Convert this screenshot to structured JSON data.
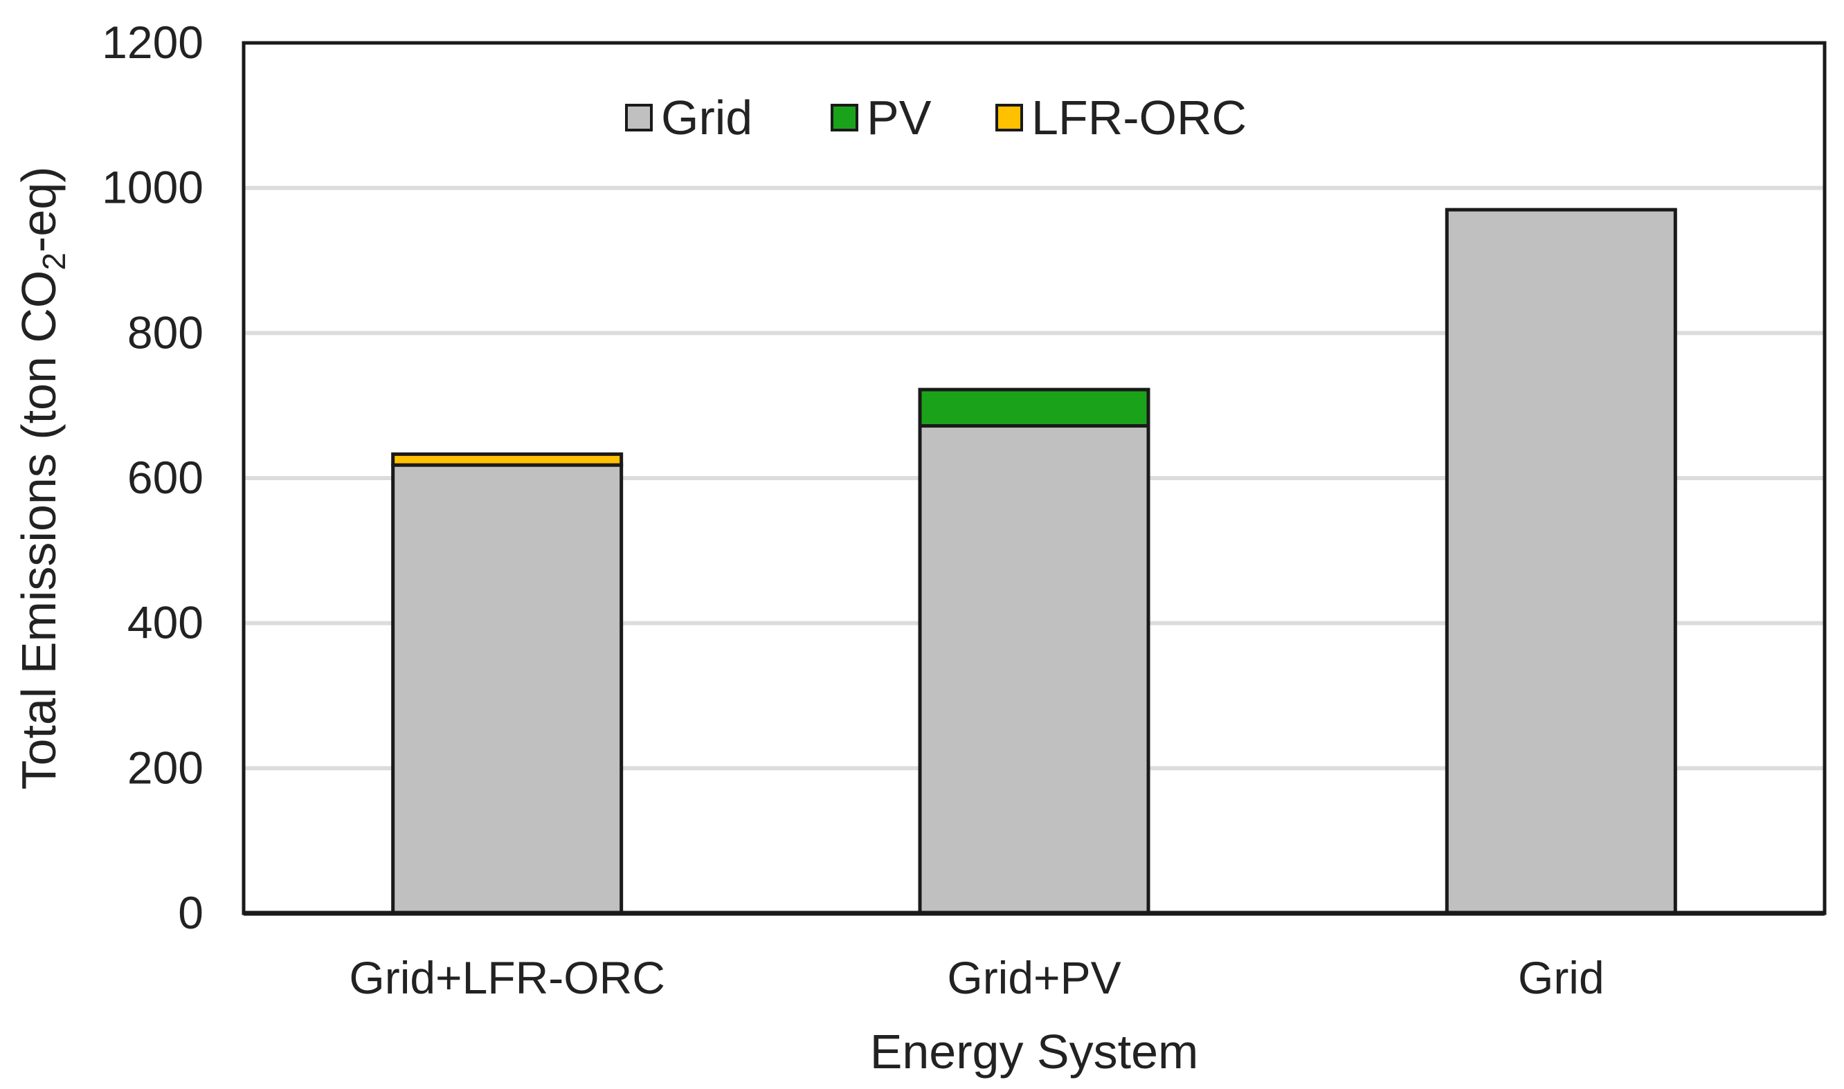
{
  "chart_data": {
    "type": "bar",
    "stacked": true,
    "title": "",
    "xlabel": "Energy System",
    "ylabel": {
      "prefix": "Total Emissions (ton CO",
      "subscript": "2",
      "suffix": "-eq)"
    },
    "categories": [
      "Grid+LFR-ORC",
      "Grid+PV",
      "Grid"
    ],
    "ylim": [
      0,
      1200
    ],
    "yticks": [
      0,
      200,
      400,
      600,
      800,
      1000,
      1200
    ],
    "grid": true,
    "legend_position": "top",
    "series": [
      {
        "name": "Grid",
        "color": "#c0c0c0",
        "values": [
          618,
          672,
          970
        ]
      },
      {
        "name": "PV",
        "color": "#1aa31a",
        "values": [
          0,
          50,
          0
        ]
      },
      {
        "name": "LFR-ORC",
        "color": "#ffc000",
        "values": [
          15,
          0,
          0
        ]
      }
    ]
  }
}
